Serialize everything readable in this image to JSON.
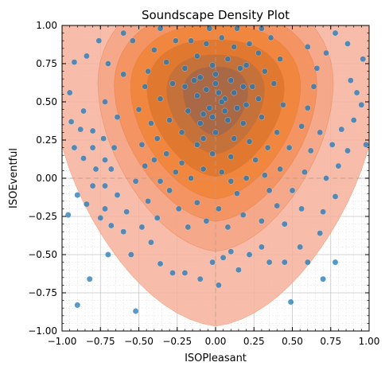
{
  "chart_data": {
    "type": "scatter",
    "title": "Soundscape Density Plot",
    "xlabel": "ISOPleasant",
    "ylabel": "ISOEventful",
    "xlim": [
      -1.0,
      1.0
    ],
    "ylim": [
      -1.0,
      1.0
    ],
    "xticks": [
      "−1.00",
      "−0.75",
      "−0.50",
      "−0.25",
      "0.00",
      "0.25",
      "0.50",
      "0.75",
      "1.00"
    ],
    "yticks": [
      "1.00",
      "0.75",
      "0.50",
      "0.25",
      "0.00",
      "−0.25",
      "−0.50",
      "−0.75",
      "−1.00"
    ],
    "xtick_values": [
      -1.0,
      -0.75,
      -0.5,
      -0.25,
      0.0,
      0.25,
      0.5,
      0.75,
      1.0
    ],
    "ytick_values": [
      1.0,
      0.75,
      0.5,
      0.25,
      0.0,
      -0.25,
      -0.5,
      -0.75,
      -1.0
    ],
    "grid": true,
    "minor_grid": true,
    "point_color": "#1f77b4",
    "density_colors": [
      "#f7b29b",
      "#f5a07c",
      "#f28b51",
      "#ef8230",
      "#d9742a",
      "#b86d3f",
      "#a0664c"
    ],
    "density_center": [
      0.0,
      0.55
    ],
    "density_levels": [
      {
        "sx": 1.0,
        "sy": 1.55
      },
      {
        "sx": 0.72,
        "sy": 1.05
      },
      {
        "sx": 0.62,
        "sy": 0.85
      },
      {
        "sx": 0.52,
        "sy": 0.7
      },
      {
        "sx": 0.42,
        "sy": 0.55
      },
      {
        "sx": 0.3,
        "sy": 0.4
      },
      {
        "sx": 0.2,
        "sy": 0.28
      }
    ],
    "points": [
      [
        -0.96,
        -0.24
      ],
      [
        -0.82,
        -0.66
      ],
      [
        -0.9,
        -0.83
      ],
      [
        -0.52,
        -0.87
      ],
      [
        0.49,
        -0.81
      ],
      [
        -0.92,
        0.76
      ],
      [
        -0.86,
        0.44
      ],
      [
        -0.94,
        0.37
      ],
      [
        -0.88,
        0.32
      ],
      [
        -0.8,
        0.31
      ],
      [
        -0.73,
        0.26
      ],
      [
        -0.8,
        0.2
      ],
      [
        -0.92,
        0.2
      ],
      [
        -0.86,
        0.13
      ],
      [
        -0.78,
        0.06
      ],
      [
        -0.72,
        0.12
      ],
      [
        -0.66,
        0.2
      ],
      [
        -0.68,
        0.06
      ],
      [
        -0.8,
        -0.05
      ],
      [
        -0.72,
        -0.05
      ],
      [
        -0.64,
        -0.11
      ],
      [
        -0.9,
        -0.11
      ],
      [
        -0.84,
        -0.17
      ],
      [
        -0.72,
        -0.2
      ],
      [
        -0.75,
        -0.26
      ],
      [
        -0.68,
        -0.31
      ],
      [
        -0.6,
        -0.35
      ],
      [
        -0.7,
        -0.5
      ],
      [
        -0.55,
        -0.5
      ],
      [
        -0.58,
        -0.22
      ],
      [
        -0.64,
        0.4
      ],
      [
        -0.72,
        0.5
      ],
      [
        -0.6,
        0.68
      ],
      [
        -0.7,
        0.75
      ],
      [
        -0.54,
        0.9
      ],
      [
        -0.6,
        0.95
      ],
      [
        -0.76,
        0.9
      ],
      [
        -0.84,
        0.8
      ],
      [
        -0.95,
        0.56
      ],
      [
        -0.5,
        0.45
      ],
      [
        -0.48,
        0.22
      ],
      [
        -0.46,
        0.08
      ],
      [
        -0.52,
        -0.02
      ],
      [
        -0.44,
        -0.15
      ],
      [
        -0.48,
        -0.32
      ],
      [
        -0.42,
        -0.42
      ],
      [
        -0.36,
        -0.56
      ],
      [
        -0.28,
        -0.62
      ],
      [
        -0.2,
        -0.62
      ],
      [
        -0.1,
        -0.66
      ],
      [
        0.02,
        -0.7
      ],
      [
        -0.02,
        -0.55
      ],
      [
        0.05,
        -0.52
      ],
      [
        0.1,
        -0.48
      ],
      [
        0.15,
        -0.6
      ],
      [
        0.22,
        -0.5
      ],
      [
        0.3,
        -0.45
      ],
      [
        0.35,
        -0.55
      ],
      [
        0.45,
        -0.55
      ],
      [
        0.55,
        -0.45
      ],
      [
        0.6,
        -0.55
      ],
      [
        0.7,
        -0.66
      ],
      [
        0.78,
        -0.55
      ],
      [
        0.68,
        -0.36
      ],
      [
        0.7,
        -0.22
      ],
      [
        0.78,
        -0.12
      ],
      [
        0.72,
        0.0
      ],
      [
        0.8,
        0.08
      ],
      [
        0.86,
        0.18
      ],
      [
        0.76,
        0.22
      ],
      [
        0.68,
        0.3
      ],
      [
        0.82,
        0.32
      ],
      [
        0.9,
        0.38
      ],
      [
        0.98,
        0.22
      ],
      [
        0.95,
        0.48
      ],
      [
        0.92,
        0.56
      ],
      [
        0.88,
        0.64
      ],
      [
        0.96,
        0.78
      ],
      [
        0.86,
        0.88
      ],
      [
        0.78,
        0.95
      ],
      [
        0.72,
        0.82
      ],
      [
        0.66,
        0.72
      ],
      [
        0.6,
        0.86
      ],
      [
        0.64,
        0.6
      ],
      [
        0.6,
        0.46
      ],
      [
        0.56,
        0.34
      ],
      [
        0.62,
        0.18
      ],
      [
        0.58,
        0.04
      ],
      [
        0.5,
        -0.08
      ],
      [
        0.56,
        -0.2
      ],
      [
        0.45,
        -0.3
      ],
      [
        0.4,
        -0.18
      ],
      [
        0.35,
        -0.08
      ],
      [
        0.42,
        0.06
      ],
      [
        0.48,
        0.2
      ],
      [
        0.4,
        0.3
      ],
      [
        0.44,
        0.48
      ],
      [
        0.38,
        0.62
      ],
      [
        0.42,
        0.78
      ],
      [
        0.36,
        0.92
      ],
      [
        0.3,
        0.98
      ],
      [
        0.22,
        0.88
      ],
      [
        0.2,
        0.74
      ],
      [
        0.24,
        0.6
      ],
      [
        0.2,
        0.48
      ],
      [
        0.18,
        0.36
      ],
      [
        0.22,
        0.24
      ],
      [
        0.26,
        0.12
      ],
      [
        0.2,
        0.0
      ],
      [
        0.14,
        -0.1
      ],
      [
        0.18,
        -0.24
      ],
      [
        0.08,
        -0.32
      ],
      [
        0.02,
        -0.2
      ],
      [
        -0.06,
        -0.28
      ],
      [
        -0.12,
        -0.16
      ],
      [
        -0.18,
        -0.32
      ],
      [
        -0.24,
        -0.2
      ],
      [
        -0.3,
        -0.08
      ],
      [
        -0.26,
        0.04
      ],
      [
        -0.32,
        0.16
      ],
      [
        -0.22,
        0.1
      ],
      [
        -0.16,
        0.0
      ],
      [
        -0.08,
        0.06
      ],
      [
        0.04,
        0.04
      ],
      [
        0.1,
        0.14
      ],
      [
        -0.02,
        0.16
      ],
      [
        -0.12,
        0.22
      ],
      [
        -0.22,
        0.3
      ],
      [
        -0.3,
        0.38
      ],
      [
        -0.36,
        0.52
      ],
      [
        -0.28,
        0.62
      ],
      [
        -0.32,
        0.76
      ],
      [
        -0.26,
        0.9
      ],
      [
        -0.36,
        0.98
      ],
      [
        -0.4,
        0.84
      ],
      [
        -0.44,
        0.7
      ],
      [
        -0.42,
        0.36
      ],
      [
        -0.18,
        0.44
      ],
      [
        -0.1,
        0.36
      ],
      [
        0.0,
        0.3
      ],
      [
        0.08,
        0.38
      ],
      [
        0.14,
        0.46
      ],
      [
        0.06,
        0.52
      ],
      [
        -0.04,
        0.46
      ],
      [
        -0.12,
        0.54
      ],
      [
        -0.2,
        0.6
      ],
      [
        -0.1,
        0.66
      ],
      [
        0.0,
        0.62
      ],
      [
        0.1,
        0.64
      ],
      [
        0.16,
        0.72
      ],
      [
        0.08,
        0.78
      ],
      [
        -0.02,
        0.74
      ],
      [
        -0.12,
        0.8
      ],
      [
        -0.2,
        0.72
      ],
      [
        -0.16,
        0.9
      ],
      [
        -0.06,
        0.88
      ],
      [
        0.04,
        0.92
      ],
      [
        0.12,
        0.86
      ],
      [
        0.14,
        0.98
      ],
      [
        -0.04,
        0.98
      ],
      [
        0.02,
        0.56
      ],
      [
        0.06,
        0.44
      ],
      [
        -0.06,
        0.58
      ],
      [
        0.12,
        0.56
      ],
      [
        -0.14,
        0.64
      ],
      [
        0.18,
        0.6
      ],
      [
        -0.08,
        0.42
      ],
      [
        0.0,
        0.68
      ],
      [
        0.04,
        0.5
      ],
      [
        -0.02,
        0.4
      ],
      [
        0.3,
        0.4
      ],
      [
        0.28,
        0.52
      ],
      [
        0.32,
        0.7
      ],
      [
        0.28,
        0.82
      ],
      [
        -0.38,
        0.26
      ],
      [
        -0.4,
        0.12
      ],
      [
        -0.36,
        -0.02
      ],
      [
        -0.38,
        -0.26
      ],
      [
        0.3,
        -0.28
      ],
      [
        0.32,
        0.02
      ],
      [
        0.1,
        -0.02
      ],
      [
        0.12,
        0.26
      ],
      [
        -0.08,
        0.26
      ],
      [
        0.34,
        0.2
      ],
      [
        -0.46,
        0.6
      ]
    ]
  }
}
